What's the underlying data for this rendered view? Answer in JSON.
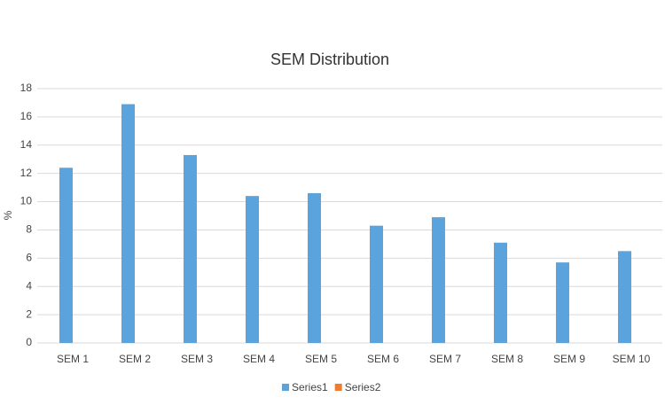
{
  "chart_data": {
    "type": "bar",
    "title": "SEM Distribution",
    "y_label": "%",
    "categories": [
      "SEM 1",
      "SEM 2",
      "SEM 3",
      "SEM 4",
      "SEM 5",
      "SEM 6",
      "SEM 7",
      "SEM 8",
      "SEM 9",
      "SEM 10"
    ],
    "series": [
      {
        "name": "Series1",
        "color": "#5ba3dc",
        "values": [
          12.4,
          16.9,
          13.3,
          10.4,
          10.6,
          8.3,
          8.9,
          7.1,
          5.7,
          6.5
        ]
      },
      {
        "name": "Series2",
        "color": "#ed7d31",
        "values": [
          null,
          null,
          null,
          null,
          null,
          null,
          null,
          null,
          null,
          null
        ]
      }
    ],
    "ylim": [
      0,
      18
    ],
    "yticks": [
      0,
      2,
      4,
      6,
      8,
      10,
      12,
      14,
      16,
      18
    ],
    "grid": true,
    "legend": "bottom"
  }
}
